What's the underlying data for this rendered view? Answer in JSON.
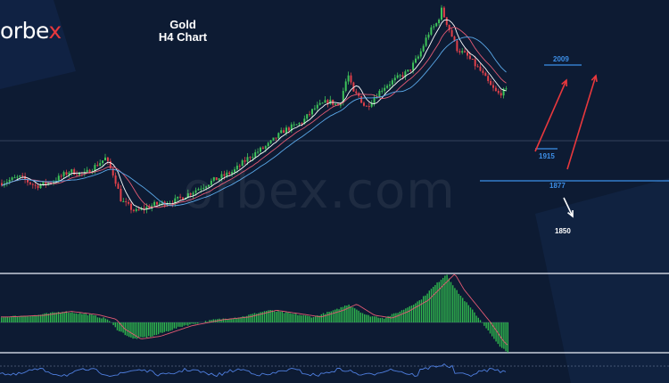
{
  "brand": {
    "logo_text": "orbe",
    "logo_accent": "x",
    "watermark": "orbex.com"
  },
  "chart_data": {
    "type": "candlestick",
    "title": [
      "Gold",
      "H4 Chart"
    ],
    "ylim": [
      1805,
      2075
    ],
    "pivots": [
      [
        0,
        1890
      ],
      [
        22,
        1896
      ],
      [
        40,
        1887
      ],
      [
        60,
        1892
      ],
      [
        78,
        1902
      ],
      [
        95,
        1899
      ],
      [
        118,
        1915
      ],
      [
        128,
        1897
      ],
      [
        136,
        1872
      ],
      [
        152,
        1861
      ],
      [
        172,
        1868
      ],
      [
        196,
        1872
      ],
      [
        215,
        1881
      ],
      [
        240,
        1893
      ],
      [
        262,
        1902
      ],
      [
        280,
        1917
      ],
      [
        300,
        1928
      ],
      [
        318,
        1943
      ],
      [
        338,
        1951
      ],
      [
        352,
        1965
      ],
      [
        368,
        1973
      ],
      [
        380,
        1968
      ],
      [
        390,
        2000
      ],
      [
        396,
        1981
      ],
      [
        402,
        1978
      ],
      [
        410,
        1966
      ],
      [
        418,
        1975
      ],
      [
        430,
        1987
      ],
      [
        442,
        1994
      ],
      [
        458,
        2003
      ],
      [
        470,
        2019
      ],
      [
        480,
        2041
      ],
      [
        490,
        2052
      ],
      [
        495,
        2065
      ],
      [
        503,
        2047
      ],
      [
        512,
        2026
      ],
      [
        524,
        2018
      ],
      [
        538,
        2004
      ],
      [
        550,
        1988
      ],
      [
        558,
        1980
      ],
      [
        566,
        1983
      ]
    ],
    "macd": {
      "zero": 0,
      "ylim": [
        -60,
        100
      ],
      "profile": [
        [
          0,
          10
        ],
        [
          40,
          13
        ],
        [
          70,
          20
        ],
        [
          100,
          14
        ],
        [
          120,
          6
        ],
        [
          130,
          -12
        ],
        [
          148,
          -30
        ],
        [
          170,
          -25
        ],
        [
          205,
          -6
        ],
        [
          240,
          5
        ],
        [
          270,
          10
        ],
        [
          300,
          22
        ],
        [
          325,
          16
        ],
        [
          350,
          10
        ],
        [
          375,
          22
        ],
        [
          390,
          33
        ],
        [
          410,
          13
        ],
        [
          430,
          8
        ],
        [
          448,
          20
        ],
        [
          470,
          40
        ],
        [
          490,
          72
        ],
        [
          500,
          88
        ],
        [
          510,
          60
        ],
        [
          525,
          30
        ],
        [
          540,
          0
        ],
        [
          555,
          -35
        ],
        [
          568,
          -55
        ]
      ]
    },
    "levels": [
      {
        "label": "2009",
        "value": 2009,
        "color": "#3d8fe8",
        "x_from": 610,
        "x_to": 652
      },
      {
        "label": "1915",
        "value": 1915,
        "color": "#3d8fe8",
        "x_from": 600,
        "x_to": 625
      },
      {
        "label": "1877",
        "value": 1877,
        "color": "#3d8fe8",
        "x_from": 538,
        "x_to": 750
      },
      {
        "label": "1850",
        "value": 1850,
        "color": "#ffffff",
        "x_from": 0,
        "x_to": 0
      }
    ],
    "arrows": [
      {
        "direction": "up",
        "color": "#e8383d"
      },
      {
        "direction": "up",
        "color": "#e8383d"
      },
      {
        "direction": "down",
        "color": "#ffffff"
      }
    ]
  }
}
